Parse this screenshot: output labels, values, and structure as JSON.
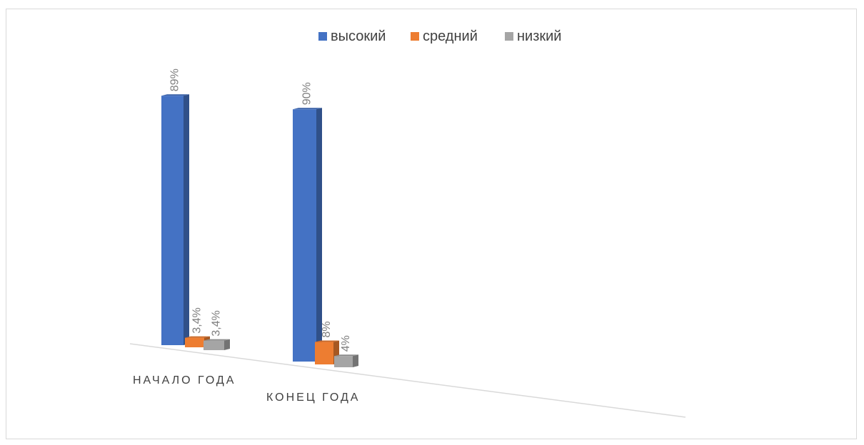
{
  "chart_data": {
    "type": "bar",
    "categories": [
      "НАЧАЛО ГОДА",
      "КОНЕЦ ГОДА"
    ],
    "series": [
      {
        "name": "высокий",
        "values": [
          89,
          90
        ],
        "labels": [
          "89%",
          "90%"
        ],
        "color": "#4472c4"
      },
      {
        "name": "средний",
        "values": [
          3.4,
          8
        ],
        "labels": [
          "3,4%",
          "8%"
        ],
        "color": "#ed7d31"
      },
      {
        "name": "низкий",
        "values": [
          3.4,
          4
        ],
        "labels": [
          "3,4%",
          "4%"
        ],
        "color": "#a5a5a5"
      }
    ],
    "legend_position": "top",
    "style": "3d-clustered-column",
    "grid": false
  }
}
